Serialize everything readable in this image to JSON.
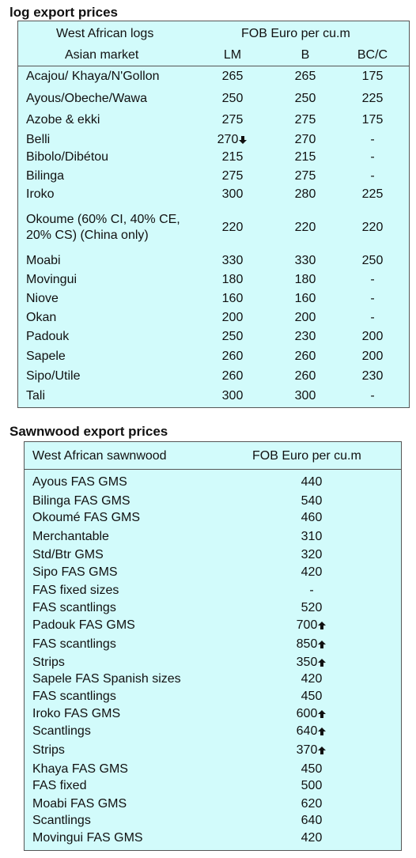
{
  "log_table": {
    "title": "log export prices",
    "header": {
      "name_line1": "West African logs",
      "name_line2": "Asian market",
      "price_header": "FOB Euro per cu.m",
      "columns": [
        "LM",
        "B",
        "BC/C"
      ]
    },
    "rows": [
      [
        "Acajou/ Khaya/N'Gollon",
        265,
        265,
        175
      ],
      [
        "Ayous/Obeche/Wawa",
        250,
        250,
        225
      ],
      [
        "Azobe & ekki",
        275,
        275,
        175
      ],
      [
        "Belli",
        270,
        270,
        "-"
      ],
      [
        "Bibolo/Dibétou",
        215,
        215,
        "-"
      ],
      [
        "Bilinga",
        275,
        275,
        "-"
      ],
      [
        "Iroko",
        300,
        280,
        225
      ],
      [
        "Okoume (60% CI, 40% CE, 20% CS) (China only)",
        220,
        220,
        220
      ],
      [
        "Moabi",
        330,
        330,
        250
      ],
      [
        "Movingui",
        180,
        180,
        "-"
      ],
      [
        "Niove",
        160,
        160,
        "-"
      ],
      [
        "Okan",
        200,
        200,
        "-"
      ],
      [
        "Padouk",
        250,
        230,
        200
      ],
      [
        "Sapele",
        260,
        260,
        200
      ],
      [
        "Sipo/Utile",
        260,
        260,
        230
      ],
      [
        "Tali",
        300,
        300,
        "-"
      ]
    ]
  },
  "sawnwood_table": {
    "title": "Sawnwood export prices",
    "header": {
      "name": "West African sawnwood",
      "price_header": "FOB Euro per cu.m"
    },
    "rows": [
      [
        "Ayous FAS GMS",
        440
      ],
      [
        "Bilinga FAS GMS",
        540
      ],
      [
        "Okoumé FAS GMS",
        460
      ],
      [
        "Merchantable",
        310
      ],
      [
        "Std/Btr GMS",
        320
      ],
      [
        "Sipo FAS GMS",
        420
      ],
      [
        "FAS fixed sizes",
        "-"
      ],
      [
        "FAS scantlings",
        520
      ],
      [
        "Padouk FAS GMS",
        700
      ],
      [
        "FAS scantlings",
        850
      ],
      [
        "Strips",
        350
      ],
      [
        "Sapele FAS Spanish sizes",
        420
      ],
      [
        "FAS scantlings",
        450
      ],
      [
        "Iroko FAS GMS",
        600
      ],
      [
        "Scantlings",
        640
      ],
      [
        "Strips",
        370
      ],
      [
        "Khaya FAS GMS",
        450
      ],
      [
        "FAS fixed",
        500
      ],
      [
        "Moabi FAS GMS",
        620
      ],
      [
        "Scantlings",
        640
      ],
      [
        "Movingui FAS GMS",
        420
      ]
    ]
  }
}
